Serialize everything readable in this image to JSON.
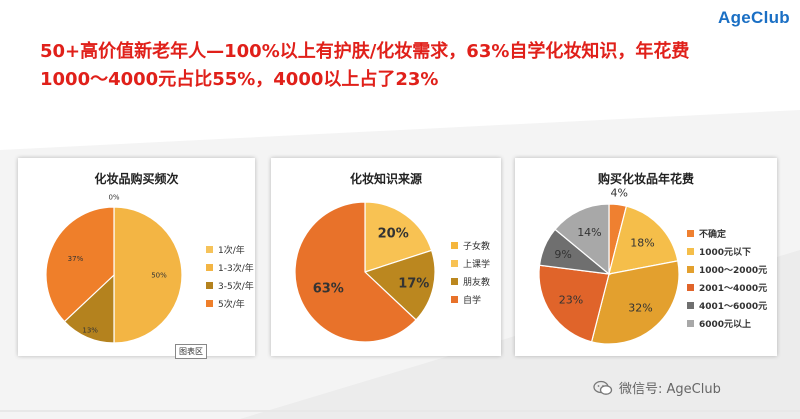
{
  "brand": "AgeClub",
  "headline": {
    "line1": "50+高价值新老年人—100%以上有护肤/化妆需求，63%自学化妆知识，年花费",
    "line2": "1000～4000元占比55%，4000以上占了23%"
  },
  "chart_data": [
    {
      "type": "pie",
      "title": "化妆品购买频次",
      "categories": [
        "1次/年",
        "1-3次/年",
        "3-5次/年",
        "5次/年"
      ],
      "values": [
        0,
        50,
        13,
        37
      ],
      "data_labels": [
        "0%",
        "50%",
        "13%",
        "37%"
      ],
      "colors": [
        "#f6c35a",
        "#f3b544",
        "#b4821e",
        "#ef7f2a"
      ],
      "legend": "right"
    },
    {
      "type": "pie",
      "title": "化妆知识来源",
      "categories": [
        "子女教",
        "上课学",
        "朋友教",
        "自学"
      ],
      "values": [
        0,
        20,
        17,
        63
      ],
      "data_labels": [
        "",
        "20%",
        "17%",
        "63%"
      ],
      "colors": [
        "#f5b63c",
        "#f8c253",
        "#bb871f",
        "#e8722a"
      ],
      "legend": "right"
    },
    {
      "type": "pie",
      "title": "购买化妆品年花费",
      "categories": [
        "不确定",
        "1000元以下",
        "1000～2000元",
        "2001～4000元",
        "4001～6000元",
        "6000元以上"
      ],
      "values": [
        4,
        18,
        32,
        23,
        9,
        14
      ],
      "data_labels": [
        "4%",
        "18%",
        "32%",
        "23%",
        "9%",
        "14%"
      ],
      "colors": [
        "#ef8030",
        "#f5be4a",
        "#e3a02e",
        "#e0642a",
        "#6f6f6f",
        "#a8a8a8"
      ],
      "legend": "right"
    }
  ],
  "chart_area_tag": "图表区",
  "footer": {
    "wechat": "微信号: AgeClub"
  }
}
